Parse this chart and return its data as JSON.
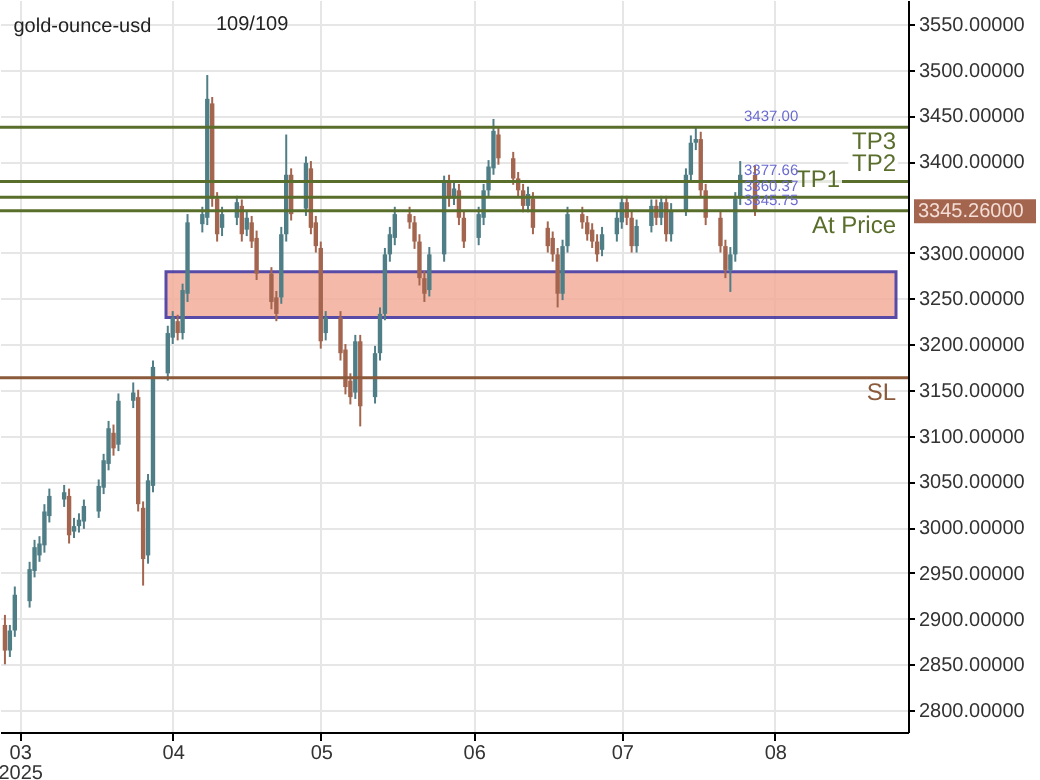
{
  "chart_data": {
    "type": "candlestick",
    "title": "gold-ounce-usd",
    "x": [
      "2025-02-26",
      "2025-02-27",
      "2025-02-28",
      "2025-03-03",
      "2025-03-04",
      "2025-03-05",
      "2025-03-06",
      "2025-03-07",
      "2025-03-10",
      "2025-03-11",
      "2025-03-12",
      "2025-03-13",
      "2025-03-14",
      "2025-03-17",
      "2025-03-18",
      "2025-03-19",
      "2025-03-20",
      "2025-03-21",
      "2025-03-24",
      "2025-03-25",
      "2025-03-26",
      "2025-03-27",
      "2025-03-28",
      "2025-03-31",
      "2025-04-01",
      "2025-04-02",
      "2025-04-03",
      "2025-04-04",
      "2025-04-07",
      "2025-04-08",
      "2025-04-09",
      "2025-04-10",
      "2025-04-11",
      "2025-04-14",
      "2025-04-15",
      "2025-04-16",
      "2025-04-17",
      "2025-04-18",
      "2025-04-21",
      "2025-04-22",
      "2025-04-23",
      "2025-04-24",
      "2025-04-25",
      "2025-04-28",
      "2025-04-29",
      "2025-04-30",
      "2025-05-01",
      "2025-05-02",
      "2025-05-05",
      "2025-05-06",
      "2025-05-07",
      "2025-05-08",
      "2025-05-09",
      "2025-05-12",
      "2025-05-13",
      "2025-05-14",
      "2025-05-15",
      "2025-05-16",
      "2025-05-19",
      "2025-05-20",
      "2025-05-21",
      "2025-05-22",
      "2025-05-23",
      "2025-05-26",
      "2025-05-27",
      "2025-05-28",
      "2025-05-29",
      "2025-05-30",
      "2025-06-02",
      "2025-06-03",
      "2025-06-04",
      "2025-06-05",
      "2025-06-06",
      "2025-06-09",
      "2025-06-10",
      "2025-06-11",
      "2025-06-12",
      "2025-06-13",
      "2025-06-16",
      "2025-06-17",
      "2025-06-18",
      "2025-06-19",
      "2025-06-20",
      "2025-06-23",
      "2025-06-24",
      "2025-06-25",
      "2025-06-26",
      "2025-06-27",
      "2025-06-30",
      "2025-07-01",
      "2025-07-02",
      "2025-07-03",
      "2025-07-04",
      "2025-07-07",
      "2025-07-08",
      "2025-07-09",
      "2025-07-10",
      "2025-07-11",
      "2025-07-14",
      "2025-07-15",
      "2025-07-16",
      "2025-07-17",
      "2025-07-18",
      "2025-07-21",
      "2025-07-22",
      "2025-07-23",
      "2025-07-24",
      "2025-07-25",
      "2025-07-28"
    ],
    "ohlc": [
      [
        2893,
        2904,
        2850,
        2865
      ],
      [
        2865,
        2893,
        2858,
        2887
      ],
      [
        2887,
        2935,
        2880,
        2926
      ],
      [
        2919,
        2962,
        2912,
        2954
      ],
      [
        2952,
        2986,
        2945,
        2978
      ],
      [
        2969,
        2990,
        2962,
        2982
      ],
      [
        2980,
        3025,
        2972,
        3017
      ],
      [
        3012,
        3042,
        3005,
        3034
      ],
      [
        3030,
        3046,
        3022,
        3038
      ],
      [
        3034,
        3042,
        2982,
        2991
      ],
      [
        2995,
        3010,
        2988,
        3001
      ],
      [
        3001,
        3015,
        2994,
        3008
      ],
      [
        3006,
        3030,
        2998,
        3023
      ],
      [
        3017,
        3052,
        3010,
        3045
      ],
      [
        3043,
        3080,
        3036,
        3073
      ],
      [
        3069,
        3116,
        3062,
        3108
      ],
      [
        3103,
        3112,
        3078,
        3086
      ],
      [
        3090,
        3146,
        3083,
        3138
      ],
      [
        3138,
        3158,
        3130,
        3147
      ],
      [
        3142,
        3150,
        3017,
        3025
      ],
      [
        3021,
        3028,
        2936,
        2965
      ],
      [
        2969,
        3058,
        2960,
        3051
      ],
      [
        3045,
        3182,
        3038,
        3175
      ],
      [
        3168,
        3220,
        3160,
        3212
      ],
      [
        3207,
        3236,
        3200,
        3229
      ],
      [
        3225,
        3232,
        3204,
        3212
      ],
      [
        3212,
        3266,
        3205,
        3259
      ],
      [
        3255,
        3342,
        3246,
        3333
      ],
      [
        3331,
        3350,
        3322,
        3342
      ],
      [
        3338,
        3494,
        3330,
        3468
      ],
      [
        3463,
        3470,
        3350,
        3359
      ],
      [
        3359,
        3366,
        3312,
        3320
      ],
      [
        3327,
        3350,
        3318,
        3342
      ],
      [
        3338,
        3362,
        3330,
        3355
      ],
      [
        3351,
        3358,
        3312,
        3320
      ],
      [
        3325,
        3346,
        3318,
        3338
      ],
      [
        3333,
        3340,
        3305,
        3312
      ],
      [
        3316,
        3324,
        3270,
        3277
      ],
      [
        3277,
        3284,
        3238,
        3246
      ],
      [
        3251,
        3258,
        3225,
        3233
      ],
      [
        3251,
        3328,
        3244,
        3320
      ],
      [
        3320,
        3429,
        3312,
        3385
      ],
      [
        3385,
        3392,
        3335,
        3342
      ],
      [
        3348,
        3405,
        3340,
        3398
      ],
      [
        3392,
        3400,
        3320,
        3327
      ],
      [
        3333,
        3340,
        3300,
        3307
      ],
      [
        3305,
        3312,
        3195,
        3203
      ],
      [
        3212,
        3236,
        3204,
        3229
      ],
      [
        3229,
        3236,
        3182,
        3190
      ],
      [
        3194,
        3200,
        3145,
        3153
      ],
      [
        3160,
        3168,
        3134,
        3142
      ],
      [
        3147,
        3210,
        3140,
        3203
      ],
      [
        3203,
        3210,
        3110,
        3132
      ],
      [
        3142,
        3198,
        3135,
        3190
      ],
      [
        3190,
        3240,
        3182,
        3233
      ],
      [
        3233,
        3305,
        3226,
        3298
      ],
      [
        3298,
        3328,
        3290,
        3320
      ],
      [
        3316,
        3350,
        3308,
        3342
      ],
      [
        3342,
        3350,
        3326,
        3333
      ],
      [
        3333,
        3340,
        3304,
        3312
      ],
      [
        3312,
        3320,
        3264,
        3272
      ],
      [
        3272,
        3280,
        3246,
        3255
      ],
      [
        3259,
        3306,
        3252,
        3298
      ],
      [
        3298,
        3384,
        3290,
        3377
      ],
      [
        3377,
        3385,
        3350,
        3359
      ],
      [
        3359,
        3378,
        3352,
        3370
      ],
      [
        3368,
        3375,
        3330,
        3338
      ],
      [
        3338,
        3345,
        3305,
        3312
      ],
      [
        3316,
        3350,
        3308,
        3342
      ],
      [
        3338,
        3375,
        3330,
        3368
      ],
      [
        3368,
        3401,
        3360,
        3394
      ],
      [
        3392,
        3446,
        3385,
        3433
      ],
      [
        3429,
        3436,
        3396,
        3403
      ],
      [
        3403,
        3410,
        3374,
        3381
      ],
      [
        3381,
        3388,
        3360,
        3368
      ],
      [
        3368,
        3375,
        3344,
        3351
      ],
      [
        3351,
        3372,
        3344,
        3364
      ],
      [
        3359,
        3366,
        3320,
        3327
      ],
      [
        3327,
        3334,
        3300,
        3307
      ],
      [
        3316,
        3323,
        3290,
        3298
      ],
      [
        3298,
        3305,
        3240,
        3255
      ],
      [
        3255,
        3314,
        3248,
        3307
      ],
      [
        3307,
        3350,
        3300,
        3342
      ],
      [
        3342,
        3350,
        3326,
        3333
      ],
      [
        3333,
        3340,
        3313,
        3320
      ],
      [
        3325,
        3332,
        3305,
        3312
      ],
      [
        3312,
        3320,
        3290,
        3298
      ],
      [
        3303,
        3328,
        3296,
        3320
      ],
      [
        3320,
        3346,
        3312,
        3338
      ],
      [
        3333,
        3362,
        3326,
        3355
      ],
      [
        3355,
        3362,
        3330,
        3338
      ],
      [
        3338,
        3345,
        3300,
        3307
      ],
      [
        3307,
        3336,
        3300,
        3329
      ],
      [
        3329,
        3358,
        3322,
        3351
      ],
      [
        3351,
        3358,
        3330,
        3338
      ],
      [
        3338,
        3362,
        3330,
        3355
      ],
      [
        3355,
        3362,
        3312,
        3320
      ],
      [
        3320,
        3354,
        3312,
        3346
      ],
      [
        3346,
        3392,
        3340,
        3385
      ],
      [
        3385,
        3428,
        3378,
        3420
      ],
      [
        3420,
        3437,
        3412,
        3424
      ],
      [
        3424,
        3432,
        3360,
        3368
      ],
      [
        3368,
        3375,
        3330,
        3338
      ],
      [
        3338,
        3345,
        3300,
        3307
      ],
      [
        3307,
        3314,
        3272,
        3281
      ],
      [
        3281,
        3306,
        3257,
        3298
      ],
      [
        3298,
        3366,
        3290,
        3359
      ],
      [
        3359,
        3400,
        3352,
        3385
      ],
      [
        3385,
        3395,
        3340,
        3345.26
      ]
    ],
    "colors": [
      "#a4654f",
      "#4f7e86",
      "#4f7e86",
      "#4f7e86",
      "#4f7e86",
      "#4f7e86",
      "#4f7e86",
      "#4f7e86",
      "#4f7e86",
      "#a4654f",
      "#4f7e86",
      "#4f7e86",
      "#4f7e86",
      "#4f7e86",
      "#4f7e86",
      "#4f7e86",
      "#a4654f",
      "#4f7e86",
      "#4f7e86",
      "#a4654f",
      "#a4654f",
      "#4f7e86",
      "#4f7e86",
      "#4f7e86",
      "#4f7e86",
      "#a4654f",
      "#4f7e86",
      "#4f7e86",
      "#4f7e86",
      "#4f7e86",
      "#a4654f",
      "#a4654f",
      "#4f7e86",
      "#4f7e86",
      "#a4654f",
      "#4f7e86",
      "#a4654f",
      "#a4654f",
      "#a4654f",
      "#a4654f",
      "#4f7e86",
      "#4f7e86",
      "#a4654f",
      "#4f7e86",
      "#a4654f",
      "#a4654f",
      "#a4654f",
      "#4f7e86",
      "#a4654f",
      "#a4654f",
      "#a4654f",
      "#4f7e86",
      "#a4654f",
      "#4f7e86",
      "#4f7e86",
      "#4f7e86",
      "#4f7e86",
      "#4f7e86",
      "#a4654f",
      "#a4654f",
      "#a4654f",
      "#a4654f",
      "#4f7e86",
      "#4f7e86",
      "#a4654f",
      "#4f7e86",
      "#a4654f",
      "#a4654f",
      "#4f7e86",
      "#4f7e86",
      "#4f7e86",
      "#4f7e86",
      "#a4654f",
      "#a4654f",
      "#a4654f",
      "#a4654f",
      "#4f7e86",
      "#a4654f",
      "#a4654f",
      "#a4654f",
      "#a4654f",
      "#4f7e86",
      "#4f7e86",
      "#a4654f",
      "#a4654f",
      "#a4654f",
      "#a4654f",
      "#4f7e86",
      "#4f7e86",
      "#4f7e86",
      "#a4654f",
      "#a4654f",
      "#4f7e86",
      "#4f7e86",
      "#a4654f",
      "#4f7e86",
      "#a4654f",
      "#4f7e86",
      "#4f7e86",
      "#4f7e86",
      "#4f7e86",
      "#a4654f",
      "#a4654f",
      "#a4654f",
      "#a4654f",
      "#4f7e86",
      "#4f7e86",
      "#4f7e86",
      "#a4654f"
    ],
    "xlim": [
      "2025-02-25",
      "2025-08-28"
    ],
    "xticks": [
      {
        "value": "2025-03-01",
        "label": "03\n2025"
      },
      {
        "value": "2025-04-01",
        "label": "04"
      },
      {
        "value": "2025-05-01",
        "label": "05"
      },
      {
        "value": "2025-06-01",
        "label": "06"
      },
      {
        "value": "2025-07-01",
        "label": "07"
      },
      {
        "value": "2025-08-01",
        "label": "08"
      }
    ],
    "ylim": [
      2776,
      3576
    ],
    "yticks": [
      {
        "value": 2800,
        "label": "2800.00000"
      },
      {
        "value": 2850,
        "label": "2850.00000"
      },
      {
        "value": 2900,
        "label": "2900.00000"
      },
      {
        "value": 2950,
        "label": "2950.00000"
      },
      {
        "value": 3000,
        "label": "3000.00000"
      },
      {
        "value": 3050,
        "label": "3050.00000"
      },
      {
        "value": 3100,
        "label": "3100.00000"
      },
      {
        "value": 3150,
        "label": "3150.00000"
      },
      {
        "value": 3200,
        "label": "3200.00000"
      },
      {
        "value": 3250,
        "label": "3250.00000"
      },
      {
        "value": 3300,
        "label": "3300.00000"
      },
      {
        "value": 3400,
        "label": "3400.00000"
      },
      {
        "value": 3450,
        "label": "3450.00000"
      },
      {
        "value": 3500,
        "label": "3500.00000"
      },
      {
        "value": 3550,
        "label": "3550.00000"
      }
    ],
    "grid": true,
    "ref_lines": [
      {
        "axis": "y",
        "value": 3437,
        "label": "TP3",
        "color": "#5a6e2c"
      },
      {
        "axis": "y",
        "value": 3377.66,
        "label": "TP2",
        "color": "#5a6e2c"
      },
      {
        "axis": "y",
        "value": 3360.37,
        "label": "TP1",
        "color": "#5a6e2c"
      },
      {
        "axis": "y",
        "value": 3345.75,
        "label": "At Price",
        "color": "#5a6e2c"
      },
      {
        "axis": "y",
        "value": 3163.24,
        "label": "SL",
        "color": "#8a5a3a"
      }
    ],
    "bands": [
      {
        "axis": "y",
        "from": 3229,
        "to": 3279,
        "color": "#f4ad9c"
      }
    ],
    "annotations": [
      "109/109",
      "3345.26000",
      {
        "text": "3437.00",
        "y": 3437
      },
      {
        "text": "3377.66",
        "y": 3377.66
      },
      {
        "text": "3360.37",
        "y": 3360.37
      },
      {
        "text": "3345.75",
        "y": 3345.75
      }
    ]
  }
}
